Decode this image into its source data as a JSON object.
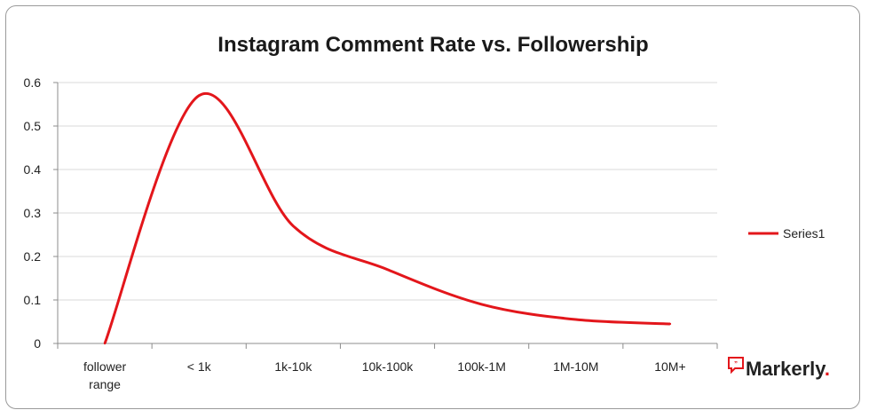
{
  "chart_data": {
    "type": "line",
    "title": "Instagram Comment Rate vs. Followership",
    "xlabel": "",
    "ylabel": "",
    "categories": [
      "follower range",
      "< 1k",
      "1k-10k",
      "10k-100k",
      "100k-1M",
      "1M-10M",
      "10M+"
    ],
    "y_ticks": [
      "0",
      "0.1",
      "0.2",
      "0.3",
      "0.4",
      "0.5",
      "0.6"
    ],
    "ylim": [
      0,
      0.6
    ],
    "grid": true,
    "legend_position": "right",
    "series": [
      {
        "name": "Series1",
        "values": [
          0,
          0.57,
          0.27,
          0.17,
          0.09,
          0.055,
          0.045
        ]
      }
    ]
  },
  "colors": {
    "series": "#e3161b",
    "grid": "#d9d9d9",
    "axis": "#8c8c8c",
    "brand_accent": "#e3161b"
  },
  "brand": {
    "name": "Markerly",
    "dot": ".",
    "icon": "speech-bubble-icon"
  }
}
